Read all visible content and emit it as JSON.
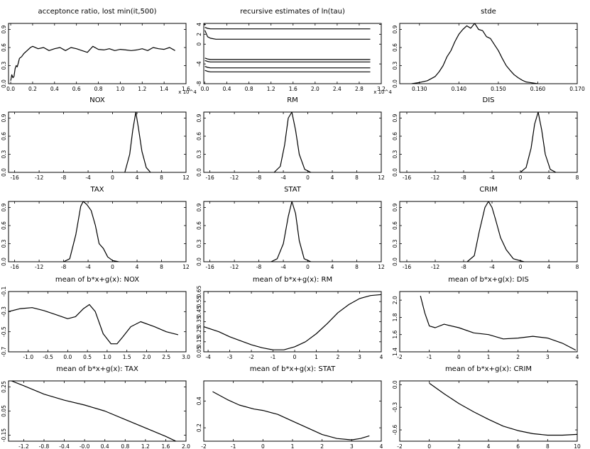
{
  "chart_data": [
    {
      "type": "line",
      "title": "acceptonce ratio, lost min(it,500)",
      "xlim": [
        -0.02,
        1.6
      ],
      "ylim": [
        0,
        1
      ],
      "xticks": [
        0,
        0.2,
        0.4,
        0.6,
        0.8,
        1.0,
        1.2,
        1.4,
        1.6
      ],
      "xticklabels": [
        "0.0",
        "0.2",
        "0.4",
        "0.6",
        "0.8",
        "1.0",
        "1.2",
        "1.4",
        "1.6"
      ],
      "yticks": [
        0,
        0.3,
        0.6,
        0.9
      ],
      "yticklabels": [
        "0.0",
        "0.3",
        "0.6",
        "0.9"
      ],
      "xscale_note": "x 10^4",
      "series": [
        {
          "x": [
            0,
            0.01,
            0.02,
            0.03,
            0.04,
            0.05,
            0.06,
            0.07,
            0.08,
            0.1,
            0.12,
            0.15,
            0.18,
            0.2,
            0.25,
            0.3,
            0.35,
            0.4,
            0.45,
            0.5,
            0.55,
            0.6,
            0.65,
            0.7,
            0.75,
            0.8,
            0.85,
            0.9,
            0.95,
            1.0,
            1.05,
            1.1,
            1.15,
            1.2,
            1.25,
            1.3,
            1.35,
            1.4,
            1.45,
            1.5
          ],
          "y": [
            0.05,
            0.15,
            0.1,
            0.12,
            0.25,
            0.3,
            0.28,
            0.35,
            0.42,
            0.45,
            0.5,
            0.55,
            0.6,
            0.62,
            0.58,
            0.6,
            0.55,
            0.58,
            0.6,
            0.55,
            0.6,
            0.58,
            0.55,
            0.52,
            0.62,
            0.57,
            0.56,
            0.58,
            0.55,
            0.57,
            0.56,
            0.55,
            0.56,
            0.58,
            0.55,
            0.6,
            0.58,
            0.57,
            0.6,
            0.55
          ]
        }
      ]
    },
    {
      "type": "line",
      "title": "recursive estimates of ln(tau)",
      "xlim": [
        -0.02,
        3.2
      ],
      "ylim": [
        -8,
        4.2
      ],
      "xticks": [
        0,
        0.4,
        0.8,
        1.2,
        1.6,
        2.0,
        2.4,
        2.8,
        3.2
      ],
      "xticklabels": [
        "0.0",
        "0.4",
        "0.8",
        "1.2",
        "1.6",
        "2.0",
        "2.4",
        "2.8",
        "3.2"
      ],
      "yticks": [
        4,
        2,
        0,
        -4,
        -8
      ],
      "yticklabels": [
        "4",
        "2",
        "0",
        "-4",
        "-8"
      ],
      "xscale_note": "x 10^4",
      "series": [
        {
          "x": [
            0,
            0.05,
            0.1,
            0.2,
            3.0
          ],
          "y": [
            3.4,
            3.2,
            3.1,
            3.1,
            3.1
          ]
        },
        {
          "x": [
            0,
            0.05,
            0.1,
            0.2,
            3.0
          ],
          "y": [
            2.8,
            1.5,
            1.2,
            1.0,
            1.0
          ]
        },
        {
          "x": [
            0,
            0.05,
            0.1,
            3.0
          ],
          "y": [
            -2.8,
            -3.0,
            -3.1,
            -3.1
          ]
        },
        {
          "x": [
            0,
            0.05,
            0.1,
            3.0
          ],
          "y": [
            -3.3,
            -3.5,
            -3.6,
            -3.6
          ]
        },
        {
          "x": [
            0,
            0.05,
            0.1,
            3.0
          ],
          "y": [
            -4.5,
            -4.7,
            -4.8,
            -4.8
          ]
        },
        {
          "x": [
            0,
            0.05,
            0.1,
            3.0
          ],
          "y": [
            -5.3,
            -5.5,
            -5.6,
            -5.6
          ]
        }
      ]
    },
    {
      "type": "line",
      "title": "stde",
      "xlim": [
        0.125,
        0.17
      ],
      "ylim": [
        0,
        1
      ],
      "xticks": [
        0.13,
        0.14,
        0.15,
        0.16,
        0.17
      ],
      "xticklabels": [
        "0.130",
        "0.140",
        "0.150",
        "0.160",
        "0.170"
      ],
      "yticks": [
        0,
        0.3,
        0.6,
        0.9
      ],
      "yticklabels": [
        "0.0",
        "0.3",
        "0.6",
        "0.9"
      ],
      "series": [
        {
          "x": [
            0.128,
            0.13,
            0.132,
            0.134,
            0.135,
            0.136,
            0.137,
            0.138,
            0.139,
            0.14,
            0.141,
            0.142,
            0.143,
            0.144,
            0.145,
            0.146,
            0.147,
            0.148,
            0.149,
            0.15,
            0.151,
            0.152,
            0.153,
            0.154,
            0.155,
            0.156,
            0.157,
            0.158,
            0.16
          ],
          "y": [
            0,
            0.02,
            0.05,
            0.12,
            0.2,
            0.3,
            0.45,
            0.55,
            0.7,
            0.82,
            0.9,
            0.96,
            0.92,
            1.0,
            0.9,
            0.88,
            0.78,
            0.75,
            0.65,
            0.55,
            0.42,
            0.3,
            0.22,
            0.15,
            0.1,
            0.06,
            0.03,
            0.02,
            0
          ]
        }
      ]
    },
    {
      "type": "line",
      "title": "NOX",
      "xlim": [
        -17,
        12
      ],
      "ylim": [
        0,
        1
      ],
      "xticks": [
        -16,
        -12,
        -8,
        -4,
        0,
        4,
        8,
        12
      ],
      "xticklabels": [
        "-16",
        "-12",
        "-8",
        "-4",
        "0",
        "4",
        "8",
        "12"
      ],
      "yticks": [
        0,
        0.3,
        0.6,
        0.9
      ],
      "yticklabels": [
        "0.0",
        "0.3",
        "0.6",
        "0.9"
      ],
      "series": [
        {
          "x": [
            2,
            2.8,
            3.3,
            3.8,
            4.2,
            4.8,
            5.5,
            6.2
          ],
          "y": [
            0,
            0.3,
            0.7,
            1.0,
            0.75,
            0.35,
            0.08,
            0
          ]
        }
      ]
    },
    {
      "type": "line",
      "title": "RM",
      "xlim": [
        -17,
        12
      ],
      "ylim": [
        0,
        1
      ],
      "xticks": [
        -16,
        -12,
        -8,
        -4,
        0,
        4,
        8,
        12
      ],
      "xticklabels": [
        "-16",
        "-12",
        "-8",
        "-4",
        "0",
        "4",
        "8",
        "12"
      ],
      "yticks": [
        0,
        0.3,
        0.6,
        0.9
      ],
      "yticklabels": [
        "0.0",
        "0.3",
        "0.6",
        "0.9"
      ],
      "series": [
        {
          "x": [
            -5.5,
            -4.5,
            -3.8,
            -3.2,
            -2.6,
            -2,
            -1.4,
            -0.5,
            0.5
          ],
          "y": [
            0,
            0.1,
            0.45,
            0.9,
            1.0,
            0.7,
            0.3,
            0.05,
            0
          ]
        }
      ]
    },
    {
      "type": "line",
      "title": "DIS",
      "xlim": [
        -17,
        8
      ],
      "ylim": [
        0,
        1
      ],
      "xticks": [
        -16,
        -12,
        -8,
        -4,
        0,
        4,
        8
      ],
      "xticklabels": [
        "-16",
        "-12",
        "-8",
        "-4",
        "0",
        "4",
        "8"
      ],
      "yticks": [
        0,
        0.3,
        0.6,
        0.9
      ],
      "yticklabels": [
        "0.0",
        "0.3",
        "0.6",
        "0.9"
      ],
      "series": [
        {
          "x": [
            0,
            0.8,
            1.5,
            2,
            2.5,
            3,
            3.5,
            4.2,
            5
          ],
          "y": [
            0,
            0.08,
            0.4,
            0.8,
            1.0,
            0.7,
            0.3,
            0.05,
            0
          ]
        }
      ]
    },
    {
      "type": "line",
      "title": "TAX",
      "xlim": [
        -17,
        12
      ],
      "ylim": [
        0,
        1
      ],
      "xticks": [
        -16,
        -12,
        -8,
        -4,
        0,
        4,
        8,
        12
      ],
      "xticklabels": [
        "-16",
        "-12",
        "-8",
        "-4",
        "0",
        "4",
        "8",
        "12"
      ],
      "yticks": [
        0,
        0.3,
        0.6,
        0.9
      ],
      "yticklabels": [
        "0.0",
        "0.3",
        "0.6",
        "0.9"
      ],
      "series": [
        {
          "x": [
            -8,
            -7,
            -6,
            -5.2,
            -4.8,
            -4.2,
            -3.5,
            -2.8,
            -2.2,
            -1.5,
            -0.8,
            0,
            1
          ],
          "y": [
            0,
            0.05,
            0.45,
            0.92,
            1.0,
            0.95,
            0.85,
            0.6,
            0.3,
            0.22,
            0.08,
            0.02,
            0
          ]
        }
      ]
    },
    {
      "type": "line",
      "title": "STAT",
      "xlim": [
        -17,
        12
      ],
      "ylim": [
        0,
        1
      ],
      "xticks": [
        -16,
        -12,
        -8,
        -4,
        0,
        4,
        8,
        12
      ],
      "xticklabels": [
        "-16",
        "-12",
        "-8",
        "-4",
        "0",
        "4",
        "8",
        "12"
      ],
      "yticks": [
        0,
        0.3,
        0.6,
        0.9
      ],
      "yticklabels": [
        "0.0",
        "0.3",
        "0.6",
        "0.9"
      ],
      "series": [
        {
          "x": [
            -6,
            -5,
            -4,
            -3.2,
            -2.6,
            -2,
            -1.4,
            -0.6,
            0.5
          ],
          "y": [
            0,
            0.05,
            0.3,
            0.75,
            1.0,
            0.8,
            0.35,
            0.05,
            0
          ]
        }
      ]
    },
    {
      "type": "line",
      "title": "CRIM",
      "xlim": [
        -17,
        8
      ],
      "ylim": [
        0,
        1
      ],
      "xticks": [
        -16,
        -12,
        -8,
        -4,
        0,
        4,
        8
      ],
      "xticklabels": [
        "-16",
        "-12",
        "-8",
        "-4",
        "0",
        "4",
        "8"
      ],
      "yticks": [
        0,
        0.3,
        0.6,
        0.9
      ],
      "yticklabels": [
        "0.0",
        "0.3",
        "0.6",
        "0.9"
      ],
      "series": [
        {
          "x": [
            -7.5,
            -6.5,
            -5.8,
            -5,
            -4.5,
            -4,
            -3.5,
            -2.8,
            -2,
            -1,
            0.5
          ],
          "y": [
            0,
            0.1,
            0.5,
            0.9,
            1.0,
            0.9,
            0.7,
            0.4,
            0.2,
            0.05,
            0
          ]
        }
      ]
    },
    {
      "type": "line",
      "title": "mean of b*x+g(x): NOX",
      "xlim": [
        -1.5,
        3.0
      ],
      "ylim": [
        -0.7,
        -0.1
      ],
      "xticks": [
        -1,
        -0.5,
        0,
        0.5,
        1,
        1.5,
        2,
        2.5,
        3
      ],
      "xticklabels": [
        "-1.0",
        "-0.5",
        "0.0",
        "0.5",
        "1.0",
        "1.5",
        "2.0",
        "2.5",
        "3.0"
      ],
      "yticks": [
        -0.1,
        -0.3,
        -0.5,
        -0.7
      ],
      "yticklabels": [
        "-0.1",
        "-0.3",
        "-0.5",
        "-0.7"
      ],
      "series": [
        {
          "x": [
            -1.5,
            -1.2,
            -0.9,
            -0.6,
            -0.3,
            0,
            0.2,
            0.4,
            0.55,
            0.7,
            0.9,
            1.1,
            1.25,
            1.4,
            1.6,
            1.85,
            2.2,
            2.5,
            2.8
          ],
          "y": [
            -0.3,
            -0.27,
            -0.26,
            -0.29,
            -0.33,
            -0.37,
            -0.35,
            -0.27,
            -0.23,
            -0.3,
            -0.52,
            -0.62,
            -0.62,
            -0.55,
            -0.45,
            -0.4,
            -0.45,
            -0.5,
            -0.53
          ]
        }
      ]
    },
    {
      "type": "line",
      "title": "mean of b*x+g(x): RM",
      "xlim": [
        -4.2,
        4
      ],
      "ylim": [
        0.05,
        0.65
      ],
      "xticks": [
        -4,
        -3,
        -2,
        -1,
        0,
        1,
        2,
        3,
        4
      ],
      "xticklabels": [
        "-4",
        "-3",
        "-2",
        "-1",
        "0",
        "1",
        "2",
        "3",
        "4"
      ],
      "yticks": [
        0.05,
        0.15,
        0.25,
        0.35,
        0.45,
        0.55,
        0.65
      ],
      "yticklabels": [
        "0.05",
        "0.15",
        "0.25",
        "0.35",
        "0.45",
        "0.55",
        "0.65"
      ],
      "series": [
        {
          "x": [
            -4.2,
            -3.5,
            -3,
            -2.5,
            -2,
            -1.5,
            -1,
            -0.5,
            0,
            0.5,
            1,
            1.5,
            2,
            2.5,
            3,
            3.5,
            4
          ],
          "y": [
            0.3,
            0.25,
            0.2,
            0.16,
            0.12,
            0.09,
            0.07,
            0.07,
            0.1,
            0.15,
            0.23,
            0.33,
            0.44,
            0.52,
            0.58,
            0.61,
            0.62
          ]
        }
      ]
    },
    {
      "type": "line",
      "title": "mean of b*x+g(x): DIS",
      "xlim": [
        -2,
        4
      ],
      "ylim": [
        1.4,
        2.1
      ],
      "xticks": [
        -2,
        -1,
        0,
        1,
        2,
        3,
        4
      ],
      "xticklabels": [
        "-2",
        "-1",
        "0",
        "1",
        "2",
        "3",
        "4"
      ],
      "yticks": [
        1.4,
        1.6,
        1.8,
        2.0
      ],
      "yticklabels": [
        "1.4",
        "1.6",
        "1.8",
        "2.0"
      ],
      "series": [
        {
          "x": [
            -1.3,
            -1.15,
            -1,
            -0.8,
            -0.5,
            0,
            0.5,
            1,
            1.5,
            2,
            2.5,
            3,
            3.5,
            3.95
          ],
          "y": [
            2.05,
            1.85,
            1.7,
            1.68,
            1.72,
            1.68,
            1.62,
            1.6,
            1.55,
            1.56,
            1.58,
            1.56,
            1.5,
            1.42
          ]
        }
      ]
    },
    {
      "type": "line",
      "title": "mean of b*x+g(x): TAX",
      "xlim": [
        -1.5,
        2.0
      ],
      "ylim": [
        -0.2,
        0.3
      ],
      "xticks": [
        -1.2,
        -0.8,
        -0.4,
        0,
        0.4,
        0.8,
        1.2,
        1.6,
        2.0
      ],
      "xticklabels": [
        "-1.2",
        "-0.8",
        "-0.4",
        "-0.0",
        "0.4",
        "0.8",
        "1.2",
        "1.6",
        "2.0"
      ],
      "yticks": [
        0.25,
        0.05,
        -0.15
      ],
      "yticklabels": [
        "0.25",
        "0.05",
        "-0.15"
      ],
      "series": [
        {
          "x": [
            -1.5,
            -1.2,
            -0.8,
            -0.4,
            0,
            0.4,
            0.8,
            1.2,
            1.6,
            1.85
          ],
          "y": [
            0.31,
            0.26,
            0.19,
            0.14,
            0.1,
            0.05,
            -0.02,
            -0.09,
            -0.16,
            -0.21
          ]
        }
      ]
    },
    {
      "type": "line",
      "title": "mean of b*x+g(x): STAT",
      "xlim": [
        -2,
        4
      ],
      "ylim": [
        0.1,
        0.55
      ],
      "xticks": [
        -2,
        -1,
        0,
        1,
        2,
        3,
        4
      ],
      "xticklabels": [
        "-2",
        "-1",
        "0",
        "1",
        "2",
        "3",
        "4"
      ],
      "yticks": [
        0.4,
        0.2
      ],
      "yticklabels": [
        "0.4",
        "0.2"
      ],
      "series": [
        {
          "x": [
            -1.7,
            -1.2,
            -0.8,
            -0.3,
            0,
            0.5,
            1,
            1.5,
            2,
            2.5,
            3,
            3.3,
            3.6
          ],
          "y": [
            0.47,
            0.41,
            0.37,
            0.34,
            0.33,
            0.3,
            0.25,
            0.2,
            0.15,
            0.12,
            0.11,
            0.12,
            0.14
          ]
        }
      ]
    },
    {
      "type": "line",
      "title": "mean of b*x+g(x): CRIM",
      "xlim": [
        -2,
        10
      ],
      "ylim": [
        -0.75,
        0.05
      ],
      "xticks": [
        -2,
        0,
        2,
        4,
        6,
        8,
        10
      ],
      "xticklabels": [
        "-2",
        "0",
        "2",
        "4",
        "6",
        "8",
        "10"
      ],
      "yticks": [
        0,
        -0.3,
        -0.6
      ],
      "yticklabels": [
        "0.0",
        "-0.3",
        "-0.6"
      ],
      "series": [
        {
          "x": [
            0,
            1,
            2,
            3,
            4,
            5,
            6,
            7,
            8,
            9,
            10
          ],
          "y": [
            0.02,
            -0.12,
            -0.25,
            -0.36,
            -0.46,
            -0.55,
            -0.61,
            -0.65,
            -0.67,
            -0.67,
            -0.66
          ]
        }
      ]
    }
  ]
}
